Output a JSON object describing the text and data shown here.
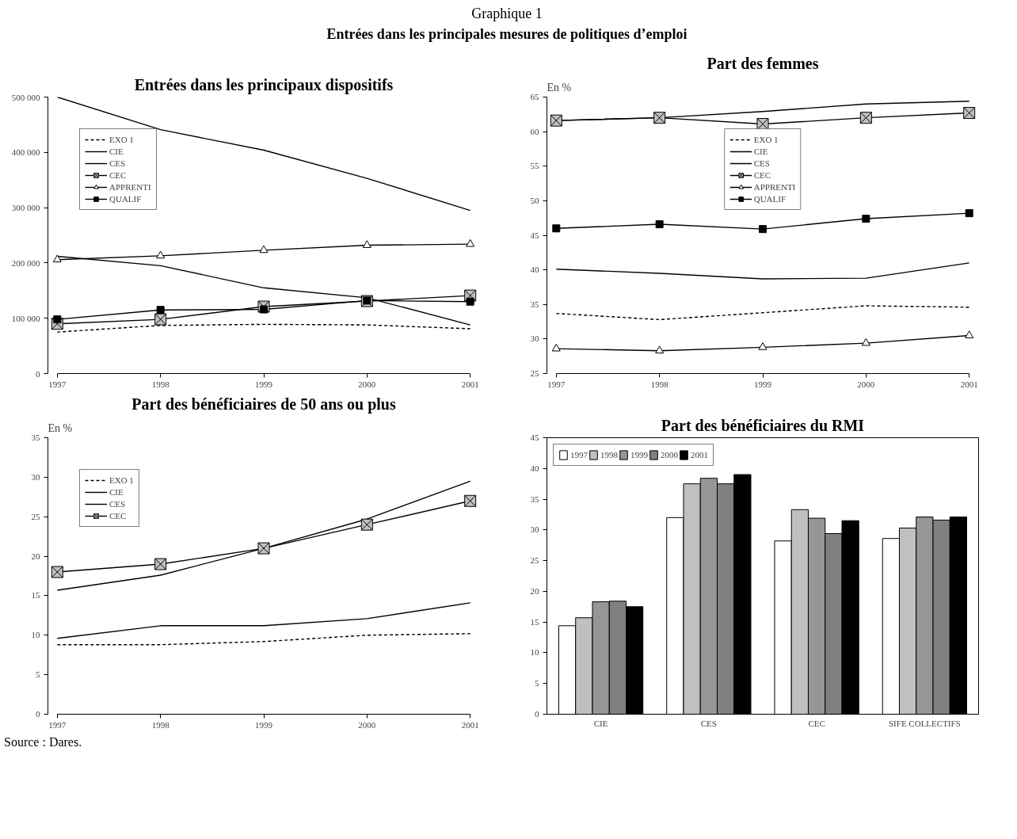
{
  "chart_data": [
    {
      "type": "line",
      "title": "Entrées dans les principaux dispositifs",
      "annotations": [
        "Graphique 1",
        "Entrées dans les principales mesures de politiques d’emploi"
      ],
      "x": [
        1997,
        1998,
        1999,
        2000,
        2001
      ],
      "xlim": [
        1997,
        2001
      ],
      "xticks": [
        1997,
        1998,
        1999,
        2000,
        2001
      ],
      "ylim": [
        0,
        500000
      ],
      "yticks": [
        0,
        {
          "value": 100000,
          "label": "100 000"
        },
        {
          "value": 200000,
          "label": "200 000"
        },
        {
          "value": 300000,
          "label": "300 000"
        },
        {
          "value": 400000,
          "label": "400 000"
        },
        {
          "value": 500000,
          "label": "500 000"
        }
      ],
      "legend": "top left",
      "series": [
        {
          "name": "EXO 1",
          "color": "#000000",
          "line_style": "dashed",
          "values": [
            75000,
            87000,
            89000,
            88000,
            81000
          ]
        },
        {
          "name": "CIE",
          "color": "#000000",
          "line_style": "solid",
          "values": [
            212000,
            195000,
            155000,
            137000,
            88000
          ]
        },
        {
          "name": "CES",
          "color": "#000000",
          "line_style": "solid",
          "values": [
            500000,
            441000,
            404000,
            353000,
            295000
          ]
        },
        {
          "name": "CEC",
          "color": "#000000",
          "line_style": "solid",
          "marker": "cross",
          "values": [
            90000,
            98000,
            121000,
            131000,
            141000
          ]
        },
        {
          "name": "APPRENTI",
          "color": "#000000",
          "line_style": "solid",
          "marker": "triangle",
          "values": [
            206000,
            213000,
            223000,
            232000,
            234000
          ]
        },
        {
          "name": "QUALIF",
          "color": "#000000",
          "line_style": "solid",
          "marker": "square",
          "values": [
            98000,
            115000,
            116000,
            132000,
            130000
          ]
        }
      ]
    },
    {
      "type": "line",
      "title": "Part des femmes",
      "ylabel": "En %",
      "x": [
        1997,
        1998,
        1999,
        2000,
        2001
      ],
      "xlim": [
        1997,
        2001
      ],
      "xticks": [
        1997,
        1998,
        1999,
        2000,
        2001
      ],
      "ylim": [
        25,
        65
      ],
      "yticks": [
        25,
        30,
        35,
        40,
        45,
        50,
        55,
        60,
        65
      ],
      "legend": "top",
      "series": [
        {
          "name": "EXO 1",
          "color": "#000000",
          "line_style": "dashed",
          "values": [
            33.7,
            32.8,
            33.8,
            34.8,
            34.6
          ]
        },
        {
          "name": "CIE",
          "color": "#000000",
          "line_style": "solid",
          "values": [
            40.1,
            39.5,
            38.7,
            38.8,
            41.0
          ]
        },
        {
          "name": "CES",
          "color": "#000000",
          "line_style": "solid",
          "values": [
            61.6,
            62.0,
            62.9,
            64.0,
            64.4
          ]
        },
        {
          "name": "CEC",
          "color": "#000000",
          "line_style": "solid",
          "marker": "cross",
          "values": [
            61.6,
            62.0,
            61.1,
            62.0,
            62.7
          ]
        },
        {
          "name": "APPRENTI",
          "color": "#000000",
          "line_style": "solid",
          "marker": "triangle",
          "values": [
            28.6,
            28.3,
            28.8,
            29.4,
            30.5
          ]
        },
        {
          "name": "QUALIF",
          "color": "#000000",
          "line_style": "solid",
          "marker": "square",
          "values": [
            46.0,
            46.6,
            45.9,
            47.4,
            48.2
          ]
        }
      ]
    },
    {
      "type": "line",
      "title": "Part des bénéficiaires de 50 ans ou plus",
      "ylabel": "En %",
      "annotations": [
        "Source : Dares."
      ],
      "x": [
        1997,
        1998,
        1999,
        2000,
        2001
      ],
      "xlim": [
        1997,
        2001
      ],
      "xticks": [
        1997,
        1998,
        1999,
        2000,
        2001
      ],
      "ylim": [
        0,
        35
      ],
      "yticks": [
        0,
        5,
        10,
        15,
        20,
        25,
        30,
        35
      ],
      "legend": "top left",
      "series": [
        {
          "name": "EXO 1",
          "color": "#000000",
          "line_style": "dashed",
          "values": [
            8.8,
            8.8,
            9.2,
            10.0,
            10.2
          ]
        },
        {
          "name": "CIE",
          "color": "#000000",
          "line_style": "solid",
          "values": [
            15.7,
            17.6,
            21.0,
            24.7,
            29.5
          ]
        },
        {
          "name": "CES",
          "color": "#000000",
          "line_style": "solid",
          "values": [
            9.6,
            11.2,
            11.2,
            12.1,
            14.1
          ]
        },
        {
          "name": "CEC",
          "color": "#000000",
          "line_style": "solid",
          "marker": "cross",
          "values": [
            18.0,
            19.0,
            21.0,
            24.0,
            27.0
          ]
        }
      ]
    },
    {
      "type": "bar",
      "title": "Part des bénéficiaires du RMI",
      "categories": [
        "CIE",
        "CES",
        "CEC",
        "SIFE COLLECTIFS"
      ],
      "ylim": [
        0,
        45
      ],
      "yticks": [
        0,
        5,
        10,
        15,
        20,
        25,
        30,
        35,
        40,
        45
      ],
      "legend": "top left",
      "series": [
        {
          "name": "1997",
          "color": "#ffffff",
          "values": [
            14.4,
            32.0,
            28.2,
            28.6
          ]
        },
        {
          "name": "1998",
          "color": "#c0c0c0",
          "values": [
            15.7,
            37.5,
            33.3,
            30.3
          ]
        },
        {
          "name": "1999",
          "color": "#969696",
          "values": [
            18.3,
            38.4,
            31.9,
            32.1
          ]
        },
        {
          "name": "2000",
          "color": "#808080",
          "values": [
            18.4,
            37.5,
            29.4,
            31.6
          ]
        },
        {
          "name": "2001",
          "color": "#000000",
          "values": [
            17.5,
            39.0,
            31.5,
            32.1
          ]
        }
      ]
    }
  ]
}
